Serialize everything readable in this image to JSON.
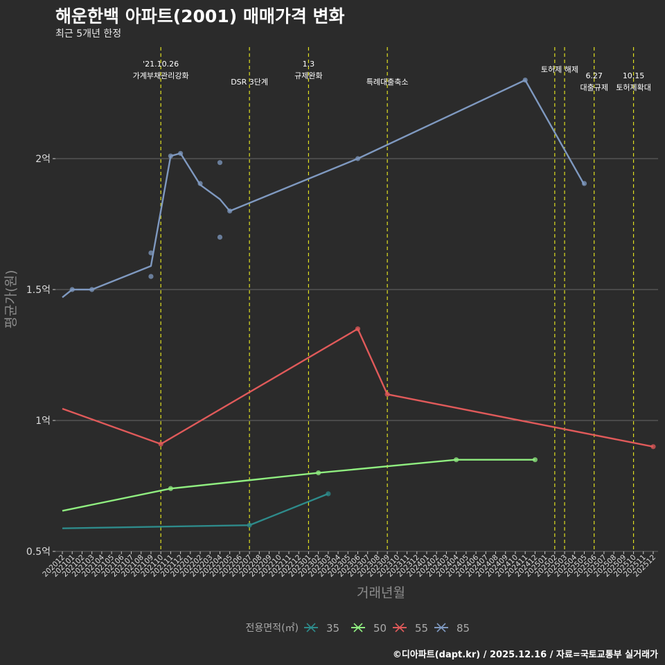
{
  "chart_data": {
    "type": "line",
    "title": "해운한백 아파트(2001) 매매가격 변화",
    "subtitle": "최근 5개년 한정",
    "xlabel": "거래년월",
    "ylabel": "평균가(원)",
    "yticks": [
      {
        "value": 0.5,
        "label": "0.5억"
      },
      {
        "value": 1.0,
        "label": "1억"
      },
      {
        "value": 1.5,
        "label": "1.5억"
      },
      {
        "value": 2.0,
        "label": "2억"
      }
    ],
    "ylim": [
      0.5,
      2.5
    ],
    "ylim_unit": "억",
    "x_categories": [
      "202012",
      "202101",
      "202102",
      "202103",
      "202104",
      "202105",
      "202106",
      "202107",
      "202108",
      "202109",
      "202110",
      "202111",
      "202112",
      "202201",
      "202202",
      "202203",
      "202204",
      "202205",
      "202206",
      "202207",
      "202208",
      "202209",
      "202210",
      "202211",
      "202212",
      "202301",
      "202302",
      "202303",
      "202304",
      "202305",
      "202306",
      "202307",
      "202308",
      "202309",
      "202310",
      "202311",
      "202312",
      "202401",
      "202402",
      "202403",
      "202404",
      "202405",
      "202406",
      "202407",
      "202408",
      "202409",
      "202410",
      "202411",
      "202412",
      "202501",
      "202502",
      "202503",
      "202504",
      "202505",
      "202506",
      "202507",
      "202508",
      "202509",
      "202510",
      "202511",
      "202512"
    ],
    "legend_title": "전용면적(㎡)",
    "legend_position": "bottom",
    "series": [
      {
        "name": "35",
        "color": "#2e8b8b",
        "line": [
          [
            0,
            0.588
          ],
          [
            19,
            0.6
          ],
          [
            27,
            0.72
          ]
        ],
        "points": [
          [
            19,
            0.6
          ],
          [
            27,
            0.72
          ]
        ]
      },
      {
        "name": "50",
        "color": "#90ee80",
        "line": [
          [
            0,
            0.655
          ],
          [
            11,
            0.74
          ],
          [
            26,
            0.8
          ],
          [
            40,
            0.85
          ],
          [
            48,
            0.85
          ]
        ],
        "points": [
          [
            11,
            0.74
          ],
          [
            26,
            0.8
          ],
          [
            40,
            0.85
          ],
          [
            48,
            0.85
          ]
        ]
      },
      {
        "name": "55",
        "color": "#e05a5a",
        "line": [
          [
            0,
            1.045
          ],
          [
            10,
            0.91
          ],
          [
            30,
            1.35
          ],
          [
            33,
            1.1
          ],
          [
            60,
            0.9
          ]
        ],
        "points": [
          [
            10,
            0.91
          ],
          [
            30,
            1.35
          ],
          [
            33,
            1.1
          ],
          [
            60,
            0.9
          ]
        ]
      },
      {
        "name": "85",
        "color": "#7f99c0",
        "line": [
          [
            0,
            1.47
          ],
          [
            1,
            1.5
          ],
          [
            3,
            1.5
          ],
          [
            9,
            1.59
          ],
          [
            11,
            2.01
          ],
          [
            12,
            2.02
          ],
          [
            14,
            1.9
          ],
          [
            16,
            1.845
          ],
          [
            17,
            1.8
          ],
          [
            30,
            2.0
          ],
          [
            47,
            2.3
          ],
          [
            53,
            1.9
          ]
        ],
        "points": [
          [
            1,
            1.5
          ],
          [
            3,
            1.5
          ],
          [
            9,
            1.64
          ],
          [
            9,
            1.55
          ],
          [
            11,
            2.01
          ],
          [
            12,
            2.02
          ],
          [
            14,
            1.905
          ],
          [
            16,
            1.985
          ],
          [
            16,
            1.7
          ],
          [
            17,
            1.8
          ],
          [
            30,
            2.0
          ],
          [
            47,
            2.3
          ],
          [
            53,
            1.905
          ]
        ]
      }
    ],
    "events": [
      {
        "x": 10,
        "lines": [
          "'21.10.26",
          "가계부채관리강화"
        ],
        "level": 0
      },
      {
        "x": 19,
        "lines": [
          "DSR 3단계"
        ],
        "level": 1
      },
      {
        "x": 25,
        "lines": [
          "1.3",
          "규제완화"
        ],
        "level": 0
      },
      {
        "x": 33,
        "lines": [
          "특례대출축소"
        ],
        "level": 1
      },
      {
        "x": 50,
        "lines": [],
        "level": 0
      },
      {
        "x": 51,
        "lines": [
          "토허제 해제"
        ],
        "level": 0,
        "label_at": 50.5
      },
      {
        "x": 54,
        "lines": [
          "6.27",
          "대출규제"
        ],
        "level": 1
      },
      {
        "x": 58,
        "lines": [
          "10.15",
          "토허제확대"
        ],
        "level": 1
      }
    ]
  },
  "caption": "©디아파트(dapt.kr) / 2025.12.16 / 자료=국토교통부 실거래가"
}
